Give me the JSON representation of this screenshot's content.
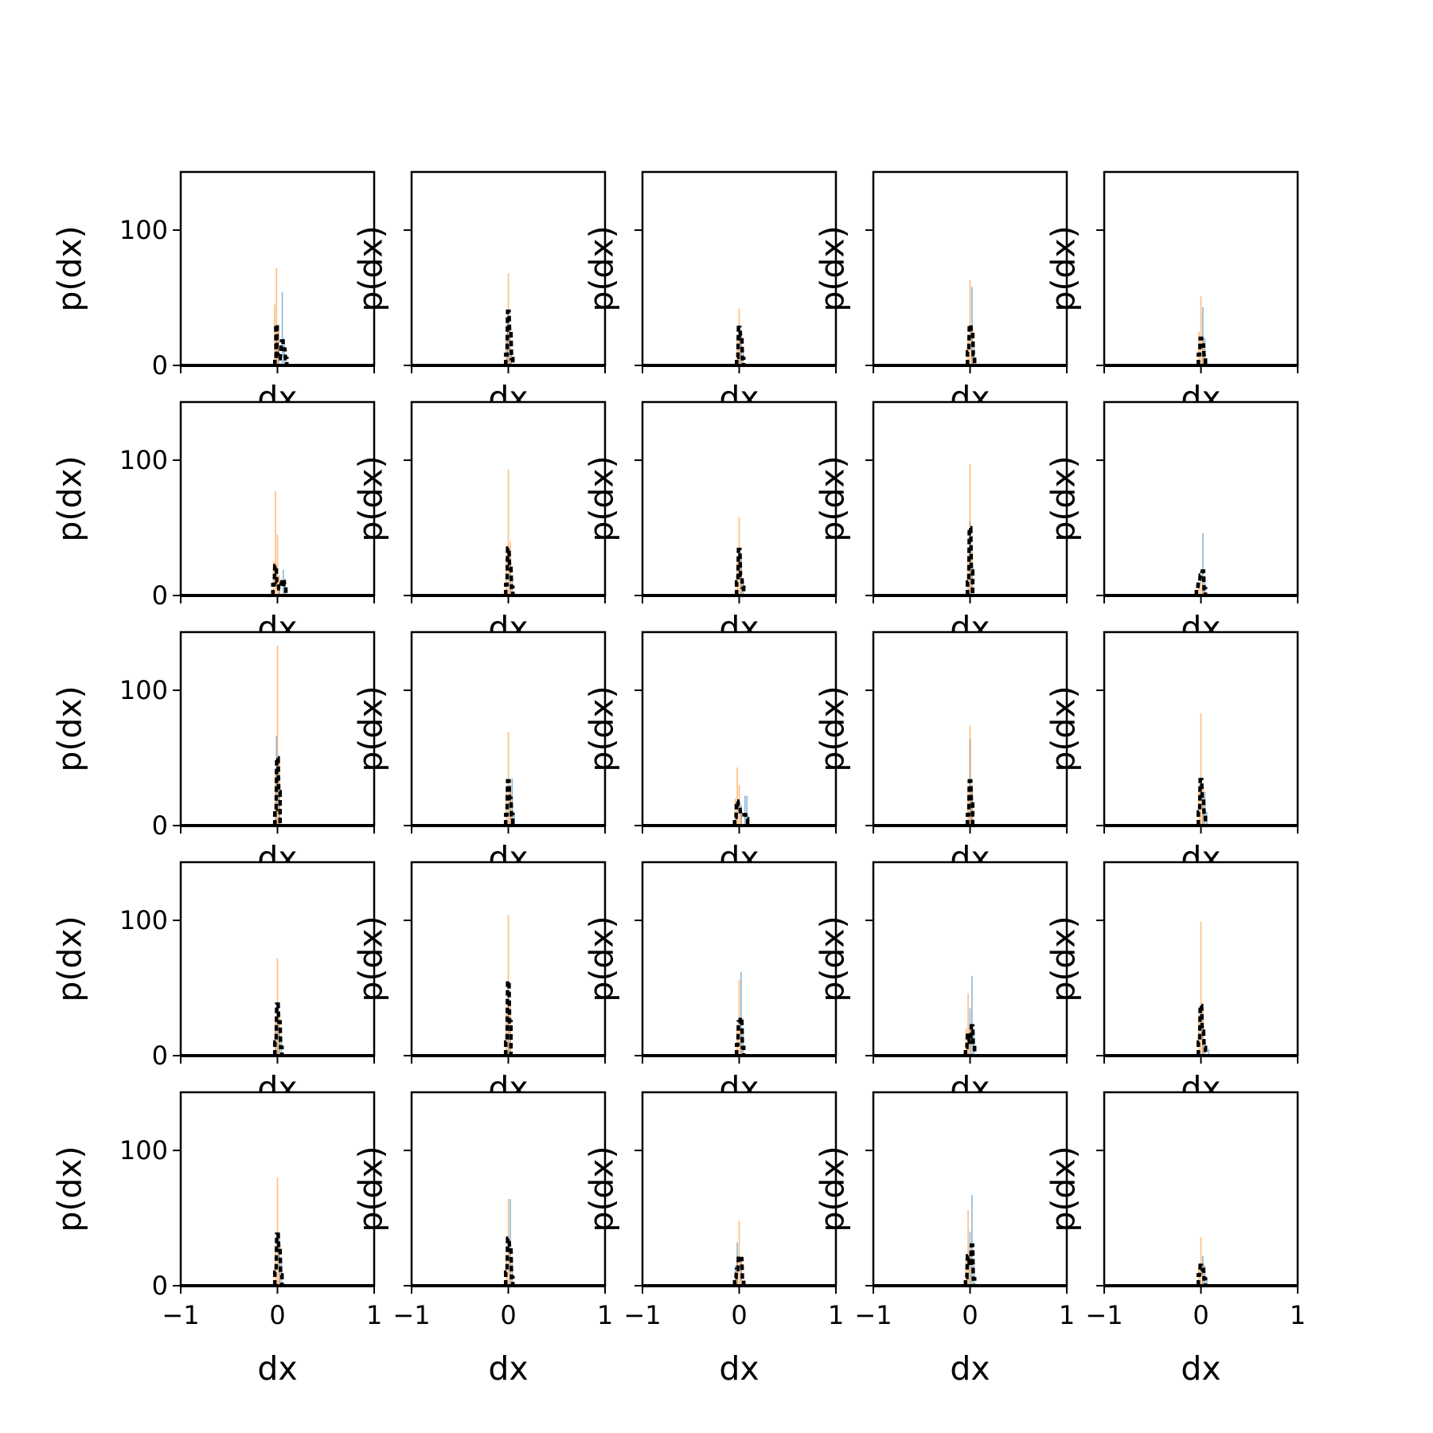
{
  "colors": {
    "blue": "#1f77b4",
    "orange": "#ff7f0e",
    "black": "#000000",
    "bar_alpha": 0.5
  },
  "chart_data": {
    "type": "histogram-grid",
    "rows": 5,
    "cols": 5,
    "xlabel": "dx",
    "ylabel": "p(dx)",
    "xlim": [
      -1,
      1
    ],
    "ylim": [
      0,
      143
    ],
    "xticks": [
      -1,
      0,
      1
    ],
    "xtick_labels": [
      "−1",
      "0",
      "1"
    ],
    "yticks": [
      0,
      100
    ],
    "ytick_labels": [
      "0",
      "100"
    ],
    "bin_width": 0.014,
    "panels": [
      {
        "orange": [
          [
            -0.03,
            45
          ],
          [
            -0.01,
            72
          ],
          [
            0.01,
            30
          ]
        ],
        "blue": [
          [
            -0.01,
            22
          ],
          [
            0.01,
            30
          ],
          [
            0.05,
            54
          ],
          [
            0.07,
            20
          ]
        ],
        "black": [
          [
            -0.02,
            5
          ],
          [
            -0.01,
            30
          ],
          [
            0.0,
            8
          ],
          [
            0.02,
            5
          ],
          [
            0.05,
            18
          ],
          [
            0.07,
            12
          ],
          [
            0.09,
            5
          ]
        ]
      },
      {
        "orange": [
          [
            -0.02,
            20
          ],
          [
            0.0,
            68
          ],
          [
            0.02,
            30
          ]
        ],
        "blue": [
          [
            -0.01,
            35
          ],
          [
            0.01,
            28
          ],
          [
            0.03,
            10
          ]
        ],
        "black": [
          [
            -0.02,
            8
          ],
          [
            0.0,
            40
          ],
          [
            0.02,
            25
          ],
          [
            0.04,
            5
          ]
        ]
      },
      {
        "orange": [
          [
            -0.02,
            18
          ],
          [
            0.0,
            42
          ],
          [
            0.02,
            22
          ]
        ],
        "blue": [
          [
            0.0,
            30
          ],
          [
            0.02,
            24
          ],
          [
            0.04,
            10
          ]
        ],
        "black": [
          [
            -0.02,
            6
          ],
          [
            0.0,
            28
          ],
          [
            0.02,
            22
          ],
          [
            0.04,
            5
          ]
        ]
      },
      {
        "orange": [
          [
            -0.02,
            20
          ],
          [
            0.0,
            63
          ],
          [
            0.02,
            30
          ]
        ],
        "blue": [
          [
            0.02,
            58
          ],
          [
            0.04,
            18
          ]
        ],
        "black": [
          [
            -0.02,
            10
          ],
          [
            0.0,
            30
          ],
          [
            0.02,
            25
          ],
          [
            0.04,
            8
          ]
        ]
      },
      {
        "orange": [
          [
            -0.02,
            25
          ],
          [
            0.0,
            51
          ],
          [
            0.02,
            20
          ]
        ],
        "blue": [
          [
            0.02,
            43
          ],
          [
            0.04,
            20
          ]
        ],
        "black": [
          [
            -0.02,
            8
          ],
          [
            0.0,
            20
          ],
          [
            0.02,
            15
          ],
          [
            0.04,
            6
          ]
        ]
      },
      {
        "orange": [
          [
            -0.04,
            25
          ],
          [
            -0.02,
            77
          ],
          [
            0.0,
            45
          ],
          [
            0.02,
            15
          ]
        ],
        "blue": [
          [
            0.02,
            10
          ],
          [
            0.06,
            19
          ],
          [
            0.08,
            12
          ]
        ],
        "black": [
          [
            -0.04,
            8
          ],
          [
            -0.02,
            22
          ],
          [
            0.0,
            10
          ],
          [
            0.02,
            5
          ],
          [
            0.06,
            12
          ],
          [
            0.08,
            8
          ]
        ]
      },
      {
        "orange": [
          [
            -0.02,
            30
          ],
          [
            0.0,
            93
          ],
          [
            0.02,
            40
          ]
        ],
        "blue": [
          [
            0.02,
            30
          ],
          [
            0.04,
            15
          ]
        ],
        "black": [
          [
            -0.02,
            8
          ],
          [
            0.0,
            35
          ],
          [
            0.02,
            20
          ],
          [
            0.04,
            6
          ]
        ]
      },
      {
        "orange": [
          [
            -0.02,
            25
          ],
          [
            0.0,
            58
          ],
          [
            0.02,
            25
          ]
        ],
        "blue": [
          [
            0.02,
            30
          ],
          [
            0.04,
            12
          ]
        ],
        "black": [
          [
            -0.02,
            10
          ],
          [
            0.0,
            34
          ],
          [
            0.02,
            15
          ],
          [
            0.04,
            6
          ]
        ]
      },
      {
        "orange": [
          [
            -0.02,
            30
          ],
          [
            0.0,
            97
          ],
          [
            0.02,
            35
          ]
        ],
        "blue": [
          [
            0.0,
            55
          ],
          [
            0.02,
            20
          ]
        ],
        "black": [
          [
            -0.02,
            10
          ],
          [
            0.0,
            50
          ],
          [
            0.02,
            18
          ]
        ]
      },
      {
        "orange": [
          [
            -0.02,
            8
          ],
          [
            0.0,
            12
          ],
          [
            0.02,
            8
          ]
        ],
        "blue": [
          [
            0.02,
            46
          ],
          [
            0.04,
            10
          ]
        ],
        "black": [
          [
            -0.04,
            5
          ],
          [
            -0.02,
            10
          ],
          [
            0.0,
            15
          ],
          [
            0.02,
            18
          ],
          [
            0.04,
            5
          ]
        ]
      },
      {
        "orange": [
          [
            -0.02,
            40
          ],
          [
            0.0,
            133
          ],
          [
            0.02,
            50
          ]
        ],
        "blue": [
          [
            -0.01,
            66
          ],
          [
            0.02,
            30
          ]
        ],
        "black": [
          [
            -0.02,
            12
          ],
          [
            0.0,
            50
          ],
          [
            0.02,
            25
          ]
        ]
      },
      {
        "orange": [
          [
            -0.02,
            25
          ],
          [
            0.0,
            69
          ],
          [
            0.02,
            28
          ]
        ],
        "blue": [
          [
            0.02,
            30
          ],
          [
            0.04,
            35
          ],
          [
            0.06,
            10
          ]
        ],
        "black": [
          [
            -0.02,
            8
          ],
          [
            0.0,
            33
          ],
          [
            0.02,
            20
          ],
          [
            0.04,
            8
          ]
        ]
      },
      {
        "orange": [
          [
            -0.04,
            20
          ],
          [
            -0.02,
            43
          ],
          [
            0.0,
            30
          ],
          [
            0.02,
            10
          ]
        ],
        "blue": [
          [
            0.02,
            15
          ],
          [
            0.06,
            22
          ],
          [
            0.08,
            22
          ],
          [
            0.1,
            5
          ]
        ],
        "black": [
          [
            -0.04,
            6
          ],
          [
            -0.02,
            18
          ],
          [
            0.0,
            15
          ],
          [
            0.02,
            8
          ],
          [
            0.06,
            8
          ],
          [
            0.08,
            5
          ]
        ]
      },
      {
        "orange": [
          [
            -0.02,
            25
          ],
          [
            0.0,
            74
          ],
          [
            0.02,
            30
          ]
        ],
        "blue": [
          [
            0.0,
            64
          ],
          [
            0.02,
            25
          ]
        ],
        "black": [
          [
            -0.02,
            8
          ],
          [
            0.0,
            33
          ],
          [
            0.02,
            18
          ]
        ]
      },
      {
        "orange": [
          [
            -0.02,
            30
          ],
          [
            0.0,
            83
          ],
          [
            0.02,
            30
          ]
        ],
        "blue": [
          [
            0.02,
            25
          ],
          [
            0.04,
            25
          ],
          [
            0.06,
            10
          ]
        ],
        "black": [
          [
            -0.02,
            10
          ],
          [
            0.0,
            34
          ],
          [
            0.02,
            20
          ],
          [
            0.04,
            8
          ]
        ]
      },
      {
        "orange": [
          [
            -0.02,
            25
          ],
          [
            0.0,
            72
          ],
          [
            0.02,
            30
          ]
        ],
        "blue": [
          [
            -0.02,
            20
          ],
          [
            0.0,
            25
          ],
          [
            0.02,
            20
          ],
          [
            0.04,
            10
          ]
        ],
        "black": [
          [
            -0.02,
            10
          ],
          [
            0.0,
            38
          ],
          [
            0.02,
            25
          ],
          [
            0.04,
            6
          ]
        ]
      },
      {
        "orange": [
          [
            -0.02,
            35
          ],
          [
            0.0,
            104
          ],
          [
            0.02,
            40
          ]
        ],
        "blue": [
          [
            0.0,
            45
          ],
          [
            0.02,
            20
          ]
        ],
        "black": [
          [
            -0.02,
            10
          ],
          [
            0.0,
            55
          ],
          [
            0.02,
            25
          ]
        ]
      },
      {
        "orange": [
          [
            -0.02,
            20
          ],
          [
            0.0,
            56
          ],
          [
            0.02,
            20
          ]
        ],
        "blue": [
          [
            0.02,
            62
          ],
          [
            0.04,
            20
          ]
        ],
        "black": [
          [
            -0.02,
            8
          ],
          [
            0.0,
            25
          ],
          [
            0.02,
            28
          ],
          [
            0.04,
            6
          ]
        ]
      },
      {
        "orange": [
          [
            -0.04,
            20
          ],
          [
            -0.02,
            46
          ],
          [
            0.0,
            20
          ]
        ],
        "blue": [
          [
            0.0,
            35
          ],
          [
            0.02,
            59
          ],
          [
            0.04,
            20
          ]
        ],
        "black": [
          [
            -0.04,
            6
          ],
          [
            -0.02,
            15
          ],
          [
            0.0,
            10
          ],
          [
            0.02,
            22
          ],
          [
            0.04,
            8
          ]
        ]
      },
      {
        "orange": [
          [
            -0.02,
            30
          ],
          [
            0.0,
            99
          ],
          [
            0.02,
            35
          ]
        ],
        "blue": [
          [
            0.02,
            20
          ],
          [
            0.04,
            10
          ],
          [
            0.08,
            5
          ]
        ],
        "black": [
          [
            -0.02,
            10
          ],
          [
            0.0,
            37
          ],
          [
            0.02,
            18
          ],
          [
            0.04,
            6
          ]
        ]
      },
      {
        "orange": [
          [
            -0.02,
            30
          ],
          [
            0.0,
            80
          ],
          [
            0.02,
            30
          ]
        ],
        "blue": [
          [
            0.02,
            35
          ],
          [
            0.04,
            20
          ]
        ],
        "black": [
          [
            -0.02,
            10
          ],
          [
            0.0,
            38
          ],
          [
            0.02,
            28
          ],
          [
            0.04,
            8
          ]
        ]
      },
      {
        "orange": [
          [
            -0.02,
            20
          ],
          [
            0.0,
            64
          ],
          [
            0.02,
            30
          ]
        ],
        "blue": [
          [
            0.02,
            64
          ],
          [
            0.04,
            20
          ]
        ],
        "black": [
          [
            -0.02,
            10
          ],
          [
            0.0,
            35
          ],
          [
            0.02,
            28
          ],
          [
            0.04,
            6
          ]
        ]
      },
      {
        "orange": [
          [
            -0.02,
            20
          ],
          [
            0.0,
            48
          ],
          [
            0.02,
            20
          ]
        ],
        "blue": [
          [
            -0.04,
            15
          ],
          [
            -0.02,
            32
          ],
          [
            0.02,
            20
          ]
        ],
        "black": [
          [
            -0.04,
            6
          ],
          [
            -0.02,
            12
          ],
          [
            0.0,
            22
          ],
          [
            0.02,
            20
          ],
          [
            0.04,
            5
          ]
        ]
      },
      {
        "orange": [
          [
            -0.04,
            20
          ],
          [
            -0.02,
            56
          ],
          [
            0.0,
            25
          ]
        ],
        "blue": [
          [
            0.0,
            40
          ],
          [
            0.02,
            67
          ],
          [
            0.04,
            15
          ]
        ],
        "black": [
          [
            -0.04,
            6
          ],
          [
            -0.02,
            22
          ],
          [
            0.0,
            15
          ],
          [
            0.02,
            30
          ],
          [
            0.04,
            5
          ]
        ]
      },
      {
        "orange": [
          [
            -0.02,
            15
          ],
          [
            0.0,
            36
          ],
          [
            0.02,
            15
          ]
        ],
        "blue": [
          [
            0.02,
            22
          ],
          [
            0.04,
            15
          ],
          [
            0.06,
            5
          ]
        ],
        "black": [
          [
            -0.02,
            8
          ],
          [
            0.0,
            15
          ],
          [
            0.02,
            12
          ],
          [
            0.04,
            5
          ]
        ]
      }
    ]
  }
}
